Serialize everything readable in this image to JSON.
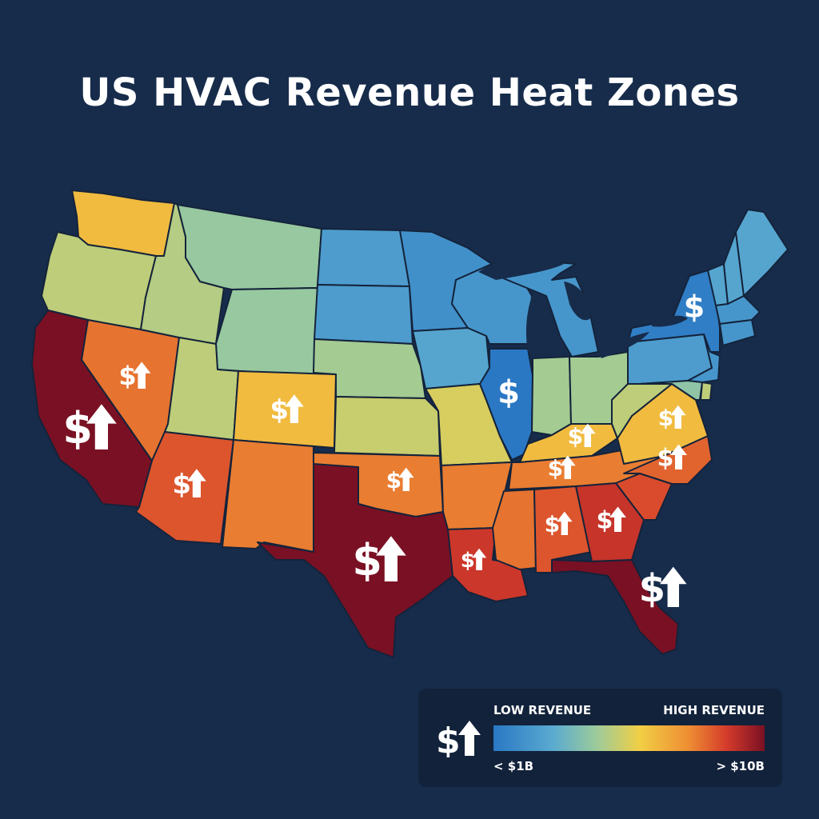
{
  "title": "US HVAC Revenue Heat Zones",
  "legend": {
    "low_label": "LOW REVENUE",
    "high_label": "HIGH REVENUE",
    "min_label": "< $1B",
    "max_label": "> $10B",
    "gradient": [
      "#2a78c4",
      "#5aaad0",
      "#9ccb9b",
      "#f1cf45",
      "#ee8d32",
      "#d43b2b",
      "#7a1023"
    ]
  },
  "marker_icons": {
    "dollar": "$",
    "arrow": "up-arrow-icon"
  },
  "colors": {
    "background": "#172c4b",
    "state_border": "#14233b",
    "low": "#2a78c4",
    "high": "#7a1023"
  },
  "states": [
    {
      "id": "WA",
      "level": 0.55
    },
    {
      "id": "OR",
      "level": 0.4
    },
    {
      "id": "CA",
      "level": 1.0,
      "marker": "dollar-up"
    },
    {
      "id": "NV",
      "level": 0.72,
      "marker": "dollar-up"
    },
    {
      "id": "ID",
      "level": 0.38
    },
    {
      "id": "MT",
      "level": 0.32
    },
    {
      "id": "WY",
      "level": 0.32
    },
    {
      "id": "UT",
      "level": 0.4
    },
    {
      "id": "CO",
      "level": 0.55,
      "marker": "dollar-up"
    },
    {
      "id": "AZ",
      "level": 0.78,
      "marker": "dollar-up"
    },
    {
      "id": "NM",
      "level": 0.7
    },
    {
      "id": "ND",
      "level": 0.12
    },
    {
      "id": "SD",
      "level": 0.12
    },
    {
      "id": "NE",
      "level": 0.35
    },
    {
      "id": "KS",
      "level": 0.42
    },
    {
      "id": "OK",
      "level": 0.7,
      "marker": "dollar-up"
    },
    {
      "id": "TX",
      "level": 1.0,
      "marker": "dollar-up"
    },
    {
      "id": "MN",
      "level": 0.08
    },
    {
      "id": "IA",
      "level": 0.15
    },
    {
      "id": "MO",
      "level": 0.45
    },
    {
      "id": "AR",
      "level": 0.7
    },
    {
      "id": "LA",
      "level": 0.85,
      "marker": "dollar-up"
    },
    {
      "id": "WI",
      "level": 0.1
    },
    {
      "id": "IL",
      "level": 0.0,
      "marker": "dollar"
    },
    {
      "id": "MI",
      "level": 0.1
    },
    {
      "id": "IN",
      "level": 0.35
    },
    {
      "id": "OH",
      "level": 0.35
    },
    {
      "id": "KY",
      "level": 0.55,
      "marker": "dollar-up"
    },
    {
      "id": "TN",
      "level": 0.7,
      "marker": "dollar-up"
    },
    {
      "id": "MS",
      "level": 0.72
    },
    {
      "id": "AL",
      "level": 0.78,
      "marker": "dollar-up"
    },
    {
      "id": "GA",
      "level": 0.86,
      "marker": "dollar-up"
    },
    {
      "id": "FL",
      "level": 1.0,
      "marker": "dollar-up"
    },
    {
      "id": "SC",
      "level": 0.8
    },
    {
      "id": "NC",
      "level": 0.75,
      "marker": "dollar-up"
    },
    {
      "id": "VA",
      "level": 0.55,
      "marker": "dollar-up"
    },
    {
      "id": "WV",
      "level": 0.4
    },
    {
      "id": "PA",
      "level": 0.12
    },
    {
      "id": "NY",
      "level": 0.02,
      "marker": "dollar"
    },
    {
      "id": "VT",
      "level": 0.15
    },
    {
      "id": "NH",
      "level": 0.15
    },
    {
      "id": "ME",
      "level": 0.15
    },
    {
      "id": "MA",
      "level": 0.1
    },
    {
      "id": "CT",
      "level": 0.1
    },
    {
      "id": "NJ",
      "level": 0.1
    },
    {
      "id": "MD",
      "level": 0.3
    },
    {
      "id": "DE",
      "level": 0.4
    }
  ]
}
